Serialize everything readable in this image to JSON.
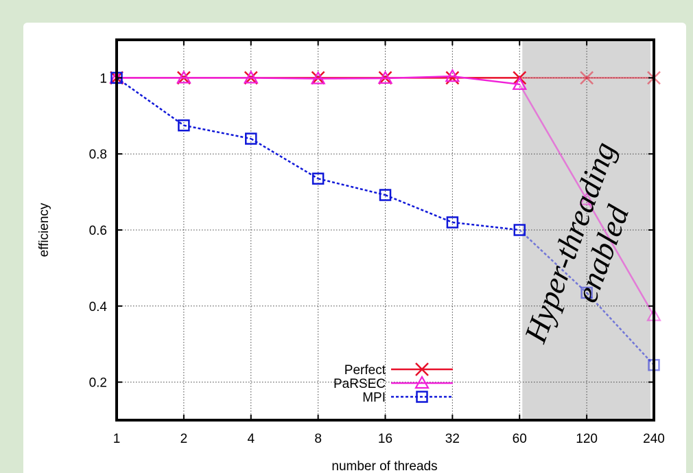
{
  "chart_data": {
    "type": "line",
    "title": "",
    "xlabel": "number of threads",
    "ylabel": "efficiency",
    "categories": [
      "1",
      "2",
      "4",
      "8",
      "16",
      "32",
      "60",
      "120",
      "240"
    ],
    "ylim": [
      0.1,
      1.1
    ],
    "yticks": [
      0.2,
      0.4,
      0.6,
      0.8,
      1
    ],
    "ytick_labels": [
      "0.2",
      "0.4",
      "0.6",
      "0.8",
      "1"
    ],
    "grid": true,
    "legend_position": "bottom-center",
    "series": [
      {
        "name": "Perfect",
        "values": [
          1,
          1,
          1,
          1,
          1,
          1,
          1,
          1,
          1
        ],
        "color": "#e8102a",
        "marker": "x",
        "dash": "solid"
      },
      {
        "name": "PaRSEC",
        "values": [
          1,
          1,
          1,
          0.998,
          0.999,
          1.004,
          0.983,
          0.68,
          0.375
        ],
        "color": "#f020d8",
        "marker": "triangle",
        "dash": "solid"
      },
      {
        "name": "MPI",
        "values": [
          1,
          0.875,
          0.84,
          0.735,
          0.692,
          0.62,
          0.6,
          0.435,
          0.245
        ],
        "color": "#1018d8",
        "marker": "square",
        "dash": "dotted"
      }
    ],
    "shaded_region": {
      "from_category": "60",
      "to_category": "240",
      "text_lines": [
        "Hyper-threading",
        "enabled"
      ],
      "color": "#d6d6d6"
    }
  }
}
